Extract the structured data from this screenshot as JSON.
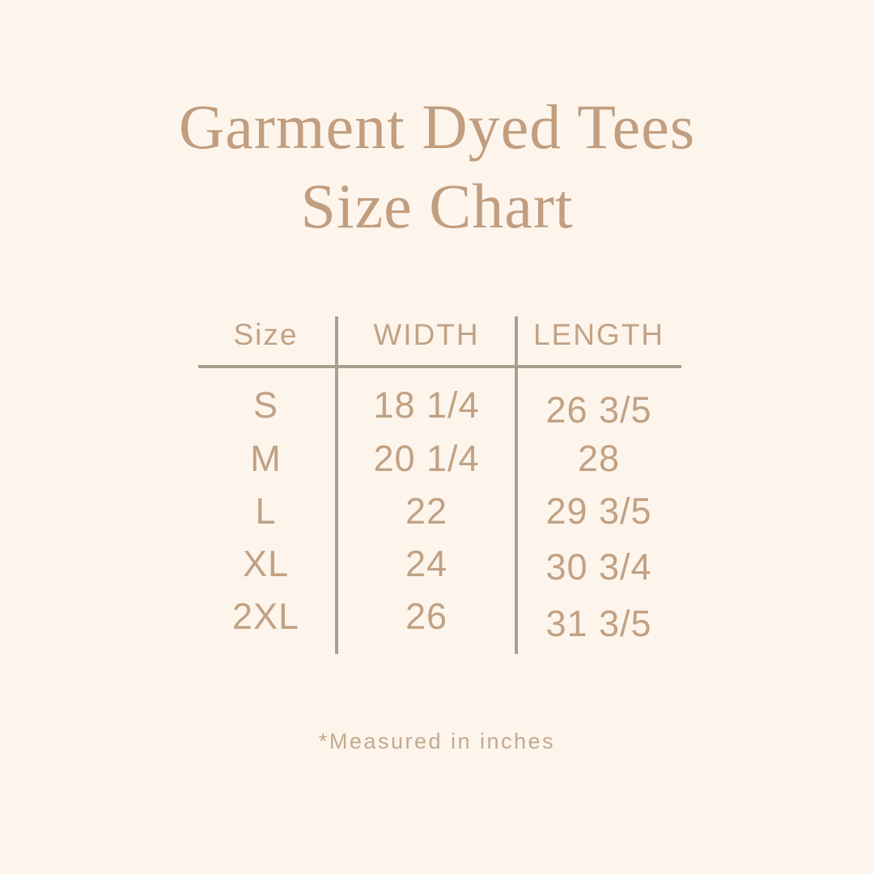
{
  "title": {
    "line1": "Garment Dyed Tees",
    "line2": "Size Chart"
  },
  "table": {
    "headers": [
      "Size",
      "WIDTH",
      "LENGTH"
    ],
    "rows": [
      {
        "size": "S",
        "width": "18 1/4",
        "length": "26 3/5"
      },
      {
        "size": "M",
        "width": "20 1/4",
        "length": "28"
      },
      {
        "size": "L",
        "width": "22",
        "length": "29 3/5"
      },
      {
        "size": "XL",
        "width": "24",
        "length": "30 3/4"
      },
      {
        "size": "2XL",
        "width": "26",
        "length": "31 3/5"
      }
    ]
  },
  "footnote": "*Measured in inches",
  "colors": {
    "background": "#fdf5ec",
    "title_text": "#c19e80",
    "table_text": "#c1a184",
    "divider_lines": "#ab9e90",
    "footnote_text": "#c3a98f"
  },
  "chart_data": {
    "type": "table",
    "title": "Garment Dyed Tees Size Chart",
    "columns": [
      "Size",
      "WIDTH",
      "LENGTH"
    ],
    "rows": [
      [
        "S",
        "18 1/4",
        "26 3/5"
      ],
      [
        "M",
        "20 1/4",
        "28"
      ],
      [
        "L",
        "22",
        "29 3/5"
      ],
      [
        "XL",
        "24",
        "30 3/4"
      ],
      [
        "2XL",
        "26",
        "31 3/5"
      ]
    ],
    "units": "inches",
    "note": "*Measured in inches",
    "layout": "centered table, vertical rules between columns, horizontal rule under header"
  }
}
